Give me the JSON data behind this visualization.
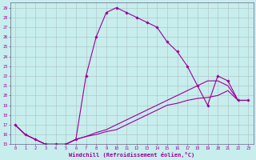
{
  "xlabel": "Windchill (Refroidissement éolien,°C)",
  "bg_color": "#c8eded",
  "line_color": "#990099",
  "grid_color": "#b0c8c8",
  "xlim": [
    -0.5,
    23.5
  ],
  "ylim": [
    15,
    29.5
  ],
  "xticks": [
    0,
    1,
    2,
    3,
    4,
    5,
    6,
    7,
    8,
    9,
    10,
    11,
    12,
    13,
    14,
    15,
    16,
    17,
    18,
    19,
    20,
    21,
    22,
    23
  ],
  "yticks": [
    15,
    16,
    17,
    18,
    19,
    20,
    21,
    22,
    23,
    24,
    25,
    26,
    27,
    28,
    29
  ],
  "series1_x": [
    0,
    1,
    2,
    3,
    4,
    5,
    6,
    7,
    8,
    9,
    10,
    11,
    12,
    13,
    14,
    15,
    16,
    17,
    18,
    19,
    20,
    21,
    22,
    23
  ],
  "series1_y": [
    17.0,
    16.0,
    15.5,
    15.0,
    15.0,
    15.0,
    15.5,
    22.0,
    26.0,
    28.5,
    29.0,
    28.5,
    28.0,
    27.5,
    27.0,
    25.5,
    24.5,
    23.0,
    21.0,
    19.0,
    22.0,
    21.5,
    19.5,
    19.5
  ],
  "series2_x": [
    0,
    1,
    2,
    3,
    4,
    5,
    6,
    7,
    8,
    9,
    10,
    11,
    12,
    13,
    14,
    15,
    16,
    17,
    18,
    19,
    20,
    21,
    22,
    23
  ],
  "series2_y": [
    17.0,
    16.0,
    15.5,
    15.0,
    15.0,
    15.0,
    15.5,
    15.8,
    16.2,
    16.5,
    17.0,
    17.5,
    18.0,
    18.5,
    19.0,
    19.5,
    20.0,
    20.5,
    21.0,
    21.5,
    21.5,
    21.0,
    19.5,
    19.5
  ],
  "series3_x": [
    0,
    1,
    2,
    3,
    4,
    5,
    6,
    7,
    8,
    9,
    10,
    11,
    12,
    13,
    14,
    15,
    16,
    17,
    18,
    19,
    20,
    21,
    22,
    23
  ],
  "series3_y": [
    17.0,
    16.0,
    15.5,
    15.0,
    15.0,
    15.0,
    15.5,
    15.8,
    16.0,
    16.3,
    16.5,
    17.0,
    17.5,
    18.0,
    18.5,
    19.0,
    19.2,
    19.5,
    19.7,
    19.8,
    20.0,
    20.5,
    19.5,
    19.5
  ]
}
